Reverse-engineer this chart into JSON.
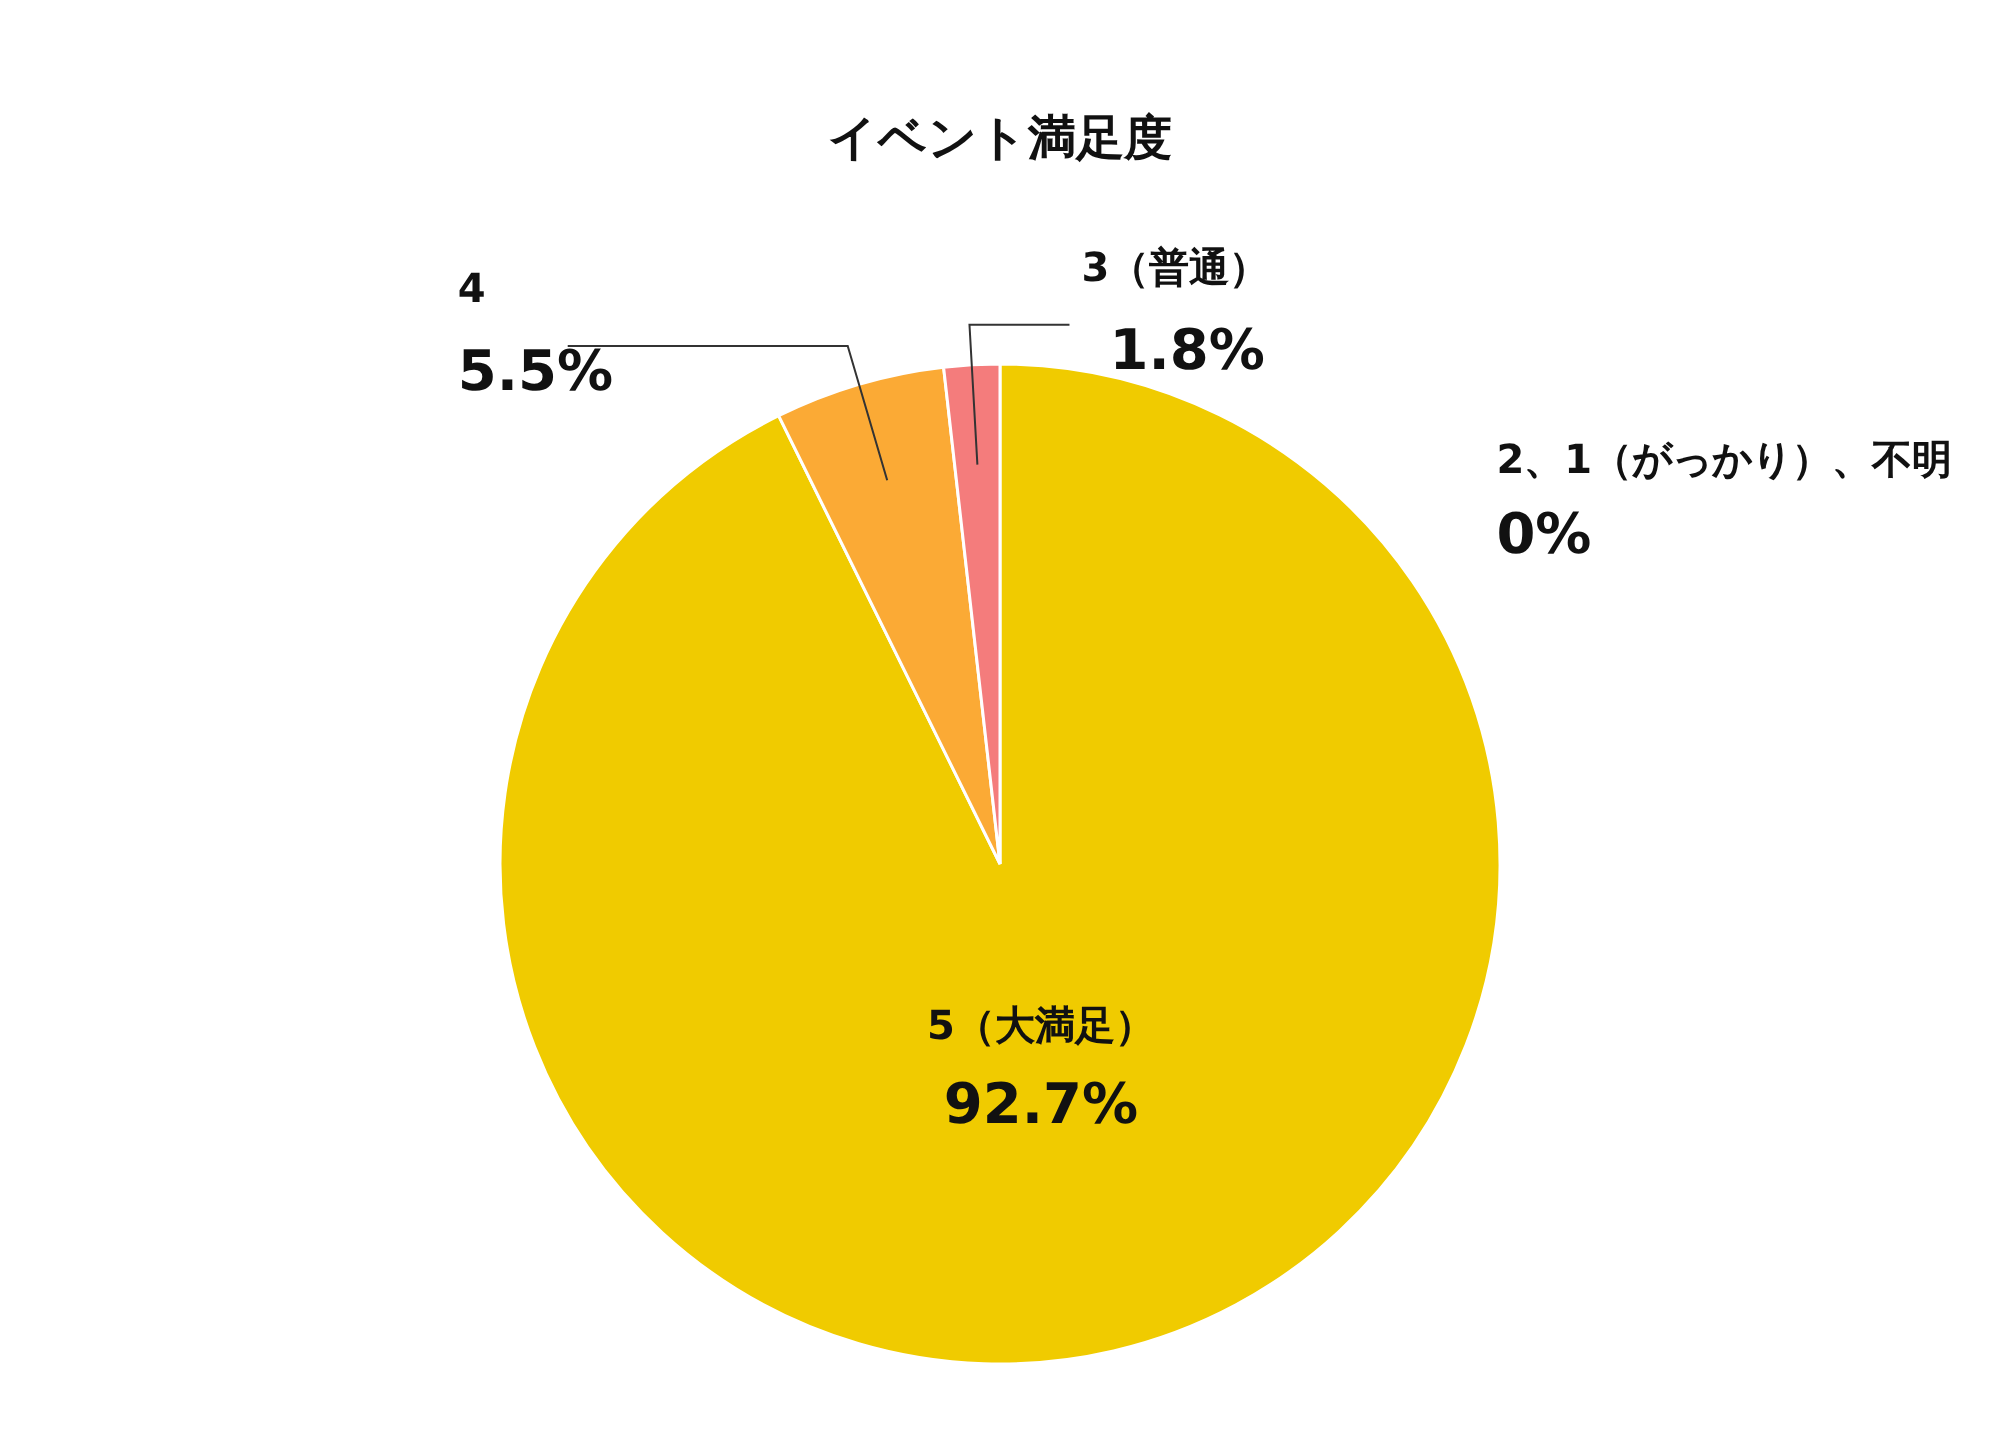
{
  "chart_data": {
    "type": "pie",
    "title": "イベント満足度",
    "categories": [
      "5（大満足）",
      "4",
      "3（普通）",
      "2、1（がっかり）、不明"
    ],
    "values": [
      92.7,
      5.5,
      1.8,
      0
    ],
    "value_labels": [
      "92.7%",
      "5.5%",
      "1.8%",
      "0%"
    ],
    "colors": [
      "#f0cb00",
      "#fbaa35",
      "#f47c7c",
      null
    ]
  }
}
